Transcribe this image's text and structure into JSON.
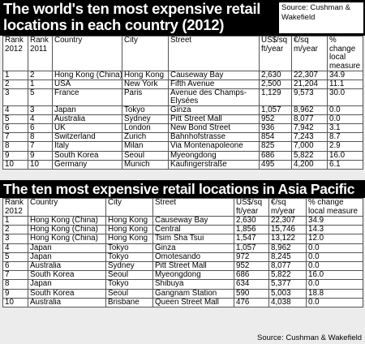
{
  "chart_data": [
    {
      "type": "table",
      "title": "The world's ten most expensive retail locations in each country (2012)",
      "source": "Source: Cushman & Wakefield",
      "columns": [
        "Rank 2012",
        "Rank 2011",
        "Country",
        "City",
        "Street",
        "US$/sq ft/year",
        "€/sq m/year",
        "% change local measure"
      ],
      "rows": [
        [
          "1",
          "2",
          "Hong Kong (China)",
          "Hong Kong",
          "Causeway Bay",
          "2,630",
          "22,307",
          "34.9"
        ],
        [
          "2",
          "1",
          "USA",
          "New York",
          "Fifth Avenue",
          "2,500",
          "21,204",
          "11.1"
        ],
        [
          "3",
          "5",
          "France",
          "Paris",
          "Avenue des Champs-Elysées",
          "1,129",
          "9,573",
          "30.0"
        ],
        [
          "4",
          "3",
          "Japan",
          "Tokyo",
          "Ginza",
          "1,057",
          "8,962",
          "0.0"
        ],
        [
          "5",
          "4",
          "Australia",
          "Sydney",
          "Pitt Street Mall",
          "952",
          "8,077",
          "0.0"
        ],
        [
          "6",
          "6",
          "UK",
          "London",
          "New Bond Street",
          "936",
          "7,942",
          "3.1"
        ],
        [
          "7",
          "8",
          "Switzerland",
          "Zurich",
          "Bahnhofstrasse",
          "854",
          "7,243",
          "8.7"
        ],
        [
          "8",
          "7",
          "Italy",
          "Milan",
          "Via Montenapoleone",
          "825",
          "7,000",
          "2.9"
        ],
        [
          "9",
          "9",
          "South Korea",
          "Seoul",
          "Myeongdong",
          "686",
          "5,822",
          "16.0"
        ],
        [
          "10",
          "10",
          "Germany",
          "Munich",
          "Kaufingerstraße",
          "495",
          "4,200",
          "6.1"
        ]
      ]
    },
    {
      "type": "table",
      "title": "The ten most expensive retail locations in Asia Pacific",
      "source": "Source: Cushman & Wakefield",
      "columns": [
        "Rank 2012",
        "Country",
        "City",
        "Street",
        "US$/sq ft/year",
        "€/sq m/year",
        "% change local measure"
      ],
      "rows": [
        [
          "1",
          "Hong Kong (China)",
          "Hong Kong",
          "Causeway Bay",
          "2,630",
          "22,307",
          "34.9"
        ],
        [
          "2",
          "Hong Kong (China)",
          "Hong Kong",
          "Central",
          "1,856",
          "15,746",
          "14.3"
        ],
        [
          "3",
          "Hong Kong (China)",
          "Hong Kong",
          "Tsim Sha Tsui",
          "1,547",
          "13,122",
          "12.0"
        ],
        [
          "4",
          "Japan",
          "Tokyo",
          "Ginza",
          "1,057",
          "8,962",
          "0.0"
        ],
        [
          "5",
          "Japan",
          "Tokyo",
          "Omotesando",
          "972",
          "8,245",
          "0.0"
        ],
        [
          "6",
          "Australia",
          "Sydney",
          "Pitt Street Mall",
          "952",
          "8,077",
          "0.0"
        ],
        [
          "7",
          "South Korea",
          "Seoul",
          "Myeongdong",
          "686",
          "5,822",
          "16.0"
        ],
        [
          "8",
          "Japan",
          "Tokyo",
          "Shibuya",
          "634",
          "5,377",
          "0.0"
        ],
        [
          "9",
          "South Korea",
          "Seoul",
          "Gangnam Station",
          "590",
          "5,003",
          "18.8"
        ],
        [
          "10",
          "Australia",
          "Brisbane",
          "Queen Street Mall",
          "476",
          "4,038",
          "0.0"
        ]
      ]
    }
  ]
}
